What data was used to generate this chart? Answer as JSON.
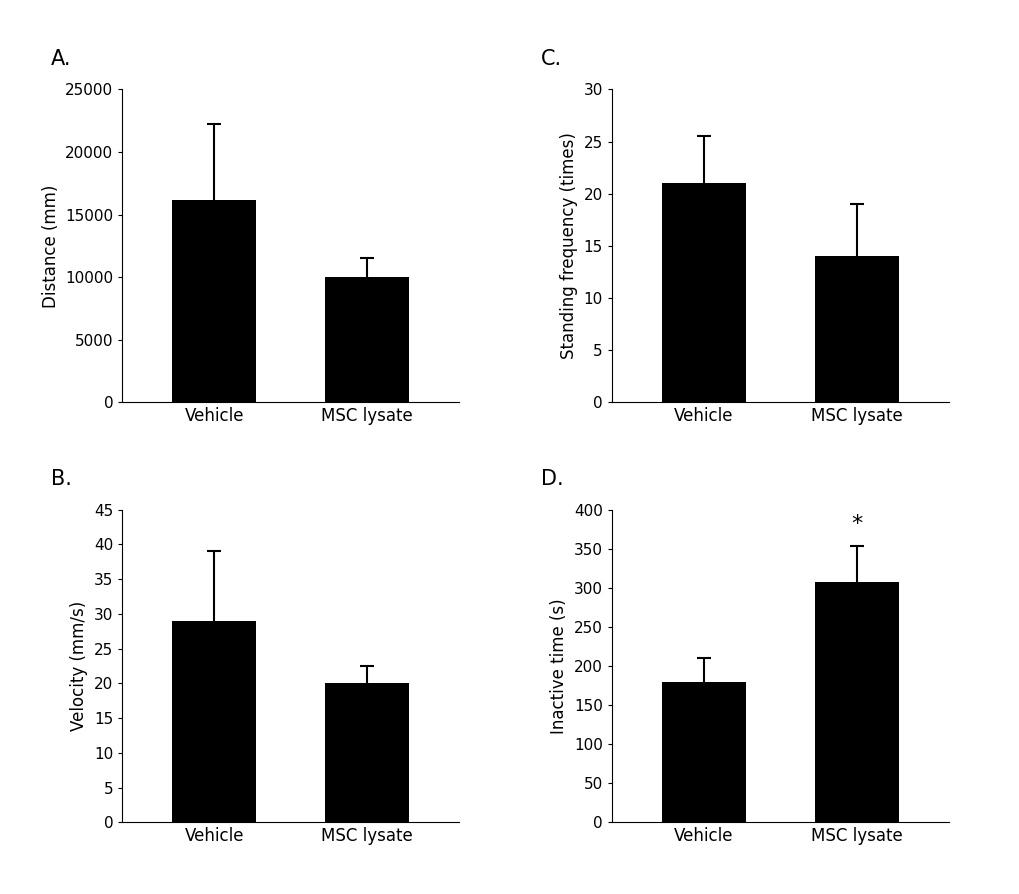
{
  "panels": [
    {
      "label": "A.",
      "ylabel": "Distance (mm)",
      "ylim": [
        0,
        25000
      ],
      "yticks": [
        0,
        5000,
        10000,
        15000,
        20000,
        25000
      ],
      "categories": [
        "Vehicle",
        "MSC lysate"
      ],
      "values": [
        16200,
        10000
      ],
      "errors": [
        6000,
        1500
      ],
      "sig_label": null,
      "sig_index": null
    },
    {
      "label": "C.",
      "ylabel": "Standing frequency (times)",
      "ylim": [
        0,
        30
      ],
      "yticks": [
        0,
        5,
        10,
        15,
        20,
        25,
        30
      ],
      "categories": [
        "Vehicle",
        "MSC lysate"
      ],
      "values": [
        21,
        14
      ],
      "errors": [
        4.5,
        5
      ],
      "sig_label": null,
      "sig_index": null
    },
    {
      "label": "B.",
      "ylabel": "Velocity (mm/s)",
      "ylim": [
        0,
        45
      ],
      "yticks": [
        0,
        5,
        10,
        15,
        20,
        25,
        30,
        35,
        40,
        45
      ],
      "categories": [
        "Vehicle",
        "MSC lysate"
      ],
      "values": [
        29,
        20
      ],
      "errors": [
        10,
        2.5
      ],
      "sig_label": null,
      "sig_index": null
    },
    {
      "label": "D.",
      "ylabel": "Inactive time (s)",
      "ylim": [
        0,
        400
      ],
      "yticks": [
        0,
        50,
        100,
        150,
        200,
        250,
        300,
        350,
        400
      ],
      "categories": [
        "Vehicle",
        "MSC lysate"
      ],
      "values": [
        180,
        308
      ],
      "errors": [
        30,
        45
      ],
      "sig_label": "*",
      "sig_index": 1
    }
  ],
  "bar_color": "#000000",
  "bar_width": 0.55,
  "background_color": "#ffffff",
  "tick_fontsize": 11,
  "ylabel_fontsize": 12,
  "panel_label_fontsize": 15,
  "xlabel_fontsize": 12
}
